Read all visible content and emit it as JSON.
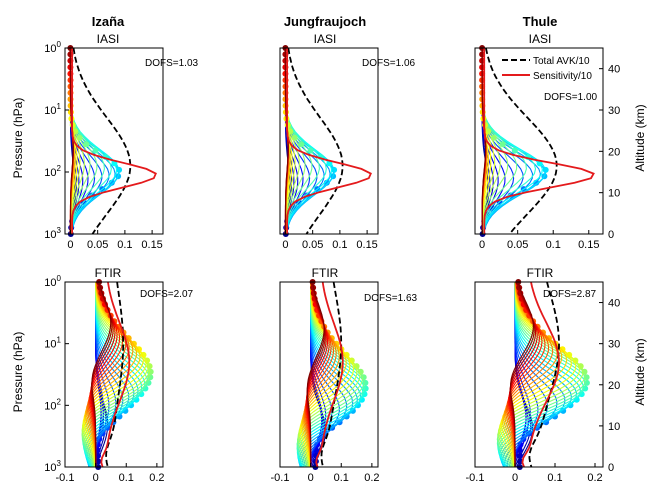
{
  "columns": [
    "Izaña",
    "Jungfraujoch",
    "Thule"
  ],
  "colors": {
    "total_avk": "#000000",
    "sensitivity": "#e41a1c",
    "colormap": [
      "#00008f",
      "#0000ff",
      "#0080ff",
      "#00ffff",
      "#80ff80",
      "#ffff00",
      "#ff8000",
      "#ff0000",
      "#800000"
    ]
  },
  "legend": {
    "total_avk": "Total AVK/10",
    "sensitivity": "Sensitivity/10",
    "placement": "top-right of Thule IASI panel"
  },
  "chart_data": [
    {
      "type": "line",
      "row": 0,
      "col": 0,
      "title": "Izaña",
      "subtitle": "IASI",
      "dofs": "DOFS=1.03",
      "ylabel": "Pressure (hPa)",
      "ylabel_right": "",
      "yscale": "log",
      "ylim_hpa": [
        1,
        1000
      ],
      "xlim": [
        -0.01,
        0.17
      ],
      "xticks": [
        "0",
        "0.05",
        "0.1",
        "0.15"
      ],
      "yticks": [
        "10^0",
        "10^1",
        "10^2",
        "10^3"
      ],
      "alt_ticks": [],
      "total_avk_peak": 0.11,
      "sensitivity_peak": 0.155,
      "kernel_peak_pressure_hpa": 100,
      "kernel_count": 30
    },
    {
      "type": "line",
      "row": 0,
      "col": 1,
      "title": "Jungfraujoch",
      "subtitle": "IASI",
      "dofs": "DOFS=1.06",
      "ylabel": "",
      "ylabel_right": "",
      "yscale": "log",
      "ylim_hpa": [
        1,
        1000
      ],
      "xlim": [
        -0.01,
        0.17
      ],
      "xticks": [
        "0",
        "0.05",
        "0.1",
        "0.15"
      ],
      "yticks": [],
      "alt_ticks": [],
      "total_avk_peak": 0.105,
      "sensitivity_peak": 0.155,
      "kernel_peak_pressure_hpa": 100,
      "kernel_count": 30
    },
    {
      "type": "line",
      "row": 0,
      "col": 2,
      "title": "Thule",
      "subtitle": "IASI",
      "dofs": "DOFS=1.00",
      "ylabel": "",
      "ylabel_right": "Altitude (km)",
      "yscale": "log",
      "ylim_hpa": [
        1,
        1000
      ],
      "xlim": [
        -0.01,
        0.17
      ],
      "xticks": [
        "0",
        "0.05",
        "0.1",
        "0.15"
      ],
      "yticks": [],
      "alt_ticks": [
        "0",
        "10",
        "20",
        "30",
        "40"
      ],
      "total_avk_peak": 0.105,
      "sensitivity_peak": 0.155,
      "kernel_peak_pressure_hpa": 100,
      "kernel_count": 30
    },
    {
      "type": "line",
      "row": 1,
      "col": 0,
      "title": "",
      "subtitle": "FTIR",
      "dofs": "DOFS=2.07",
      "ylabel": "Pressure (hPa)",
      "ylabel_right": "",
      "yscale": "log",
      "ylim_hpa": [
        1,
        1000
      ],
      "xlim": [
        -0.1,
        0.22
      ],
      "xticks": [
        "-0.1",
        "0",
        "0.1",
        "0.2"
      ],
      "yticks": [
        "10^0",
        "10^1",
        "10^2",
        "10^3"
      ],
      "alt_ticks": [],
      "total_avk_peak": 0.09,
      "sensitivity_peak": 0.11,
      "kernel_peak_pressure_hpa": 30,
      "kernel_count": 34
    },
    {
      "type": "line",
      "row": 1,
      "col": 1,
      "title": "",
      "subtitle": "FTIR",
      "dofs": "DOFS=1.63",
      "ylabel": "",
      "ylabel_right": "",
      "yscale": "log",
      "ylim_hpa": [
        1,
        1000
      ],
      "xlim": [
        -0.1,
        0.22
      ],
      "xticks": [
        "-0.1",
        "0",
        "0.1",
        "0.2"
      ],
      "yticks": [],
      "alt_ticks": [],
      "total_avk_peak": 0.1,
      "sensitivity_peak": 0.105,
      "kernel_peak_pressure_hpa": 50,
      "kernel_count": 34
    },
    {
      "type": "line",
      "row": 1,
      "col": 2,
      "title": "",
      "subtitle": "FTIR",
      "dofs": "DOFS=2.87",
      "ylabel": "",
      "ylabel_right": "Altitude (km)",
      "yscale": "log",
      "ylim_hpa": [
        1,
        1000
      ],
      "xlim": [
        -0.1,
        0.22
      ],
      "xticks": [
        "-0.1",
        "0",
        "0.1",
        "0.2"
      ],
      "yticks": [],
      "alt_ticks": [
        "0",
        "10",
        "20",
        "30",
        "40"
      ],
      "total_avk_peak": 0.11,
      "sensitivity_peak": 0.11,
      "kernel_peak_pressure_hpa": 40,
      "kernel_count": 34
    }
  ]
}
